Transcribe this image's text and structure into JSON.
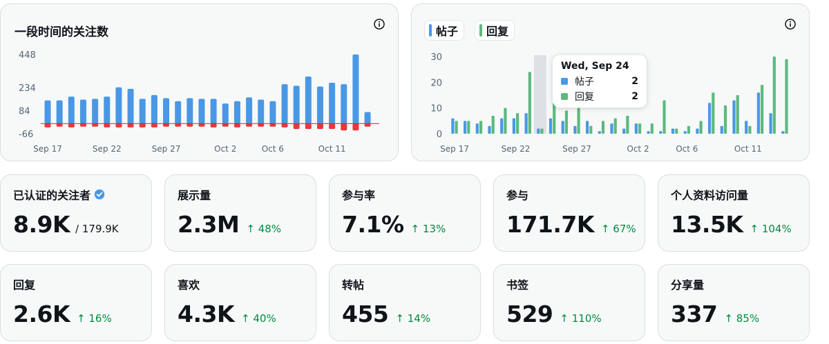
{
  "followers_chart": {
    "title": "一段时间的关注数",
    "info_icon": "info-icon",
    "y_ticks": [
      "448",
      "234",
      "84",
      "-66"
    ],
    "x_labels": [
      "Sep 17",
      "Sep 22",
      "Sep 27",
      "Oct 2",
      "Oct 6",
      "Oct 11"
    ],
    "colors": {
      "gain": "#4a98e5",
      "loss": "#e5393b"
    }
  },
  "activity_chart": {
    "legend": [
      {
        "label": "帖子",
        "color": "#4a98e5"
      },
      {
        "label": "回复",
        "color": "#5cb97e"
      }
    ],
    "info_icon": "info-icon",
    "y_ticks": [
      "30",
      "20",
      "10",
      "0"
    ],
    "x_labels": [
      "Sep 17",
      "Sep 22",
      "Sep 27",
      "Oct 2",
      "Oct 6",
      "Oct 11"
    ],
    "tooltip": {
      "date": "Wed, Sep 24",
      "rows": [
        {
          "name": "帖子",
          "value": "2"
        },
        {
          "name": "回复",
          "value": "2"
        }
      ]
    }
  },
  "chart_data": [
    {
      "type": "bar",
      "x": [
        "Sep 17",
        "Sep 18",
        "Sep 19",
        "Sep 20",
        "Sep 21",
        "Sep 22",
        "Sep 23",
        "Sep 24",
        "Sep 25",
        "Sep 26",
        "Sep 27",
        "Sep 28",
        "Sep 29",
        "Sep 30",
        "Oct 1",
        "Oct 2",
        "Oct 3",
        "Oct 4",
        "Oct 5",
        "Oct 6",
        "Oct 7",
        "Oct 8",
        "Oct 9",
        "Oct 10",
        "Oct 11",
        "Oct 12",
        "Oct 13",
        "Oct 14"
      ],
      "series": [
        {
          "values": [
            150,
            150,
            175,
            155,
            160,
            175,
            235,
            225,
            160,
            185,
            165,
            145,
            165,
            160,
            160,
            130,
            145,
            170,
            155,
            145,
            255,
            245,
            305,
            240,
            265,
            255,
            448,
            75
          ]
        },
        {
          "values": [
            -25,
            -20,
            -25,
            -20,
            -20,
            -25,
            -25,
            -25,
            -25,
            -25,
            -20,
            -20,
            -20,
            -20,
            -25,
            -20,
            -25,
            -20,
            -20,
            -20,
            -25,
            -35,
            -35,
            -35,
            -35,
            -45,
            -45,
            -20
          ]
        }
      ],
      "ylim": [
        -66,
        448
      ],
      "y_ticks": [
        448,
        234,
        84,
        -66
      ]
    },
    {
      "type": "bar",
      "x": [
        "Sep 17",
        "Sep 18",
        "Sep 19",
        "Sep 20",
        "Sep 21",
        "Sep 22",
        "Sep 23",
        "Sep 24",
        "Sep 25",
        "Sep 26",
        "Sep 27",
        "Sep 28",
        "Sep 29",
        "Sep 30",
        "Oct 1",
        "Oct 2",
        "Oct 3",
        "Oct 4",
        "Oct 5",
        "Oct 6",
        "Oct 7",
        "Oct 8",
        "Oct 9",
        "Oct 10",
        "Oct 11",
        "Oct 12",
        "Oct 13",
        "Oct 14"
      ],
      "series": [
        {
          "name": "帖子",
          "values": [
            6,
            5,
            4,
            3,
            6,
            6,
            8,
            2,
            6,
            5,
            3,
            5,
            1,
            4,
            2,
            4,
            1,
            1,
            2,
            1,
            2,
            12,
            3,
            13,
            5,
            16,
            8,
            1
          ]
        },
        {
          "name": "回复",
          "values": [
            5,
            5,
            5,
            7,
            10,
            8,
            24,
            2,
            12,
            9,
            10,
            3,
            5,
            6,
            7,
            4,
            4,
            13,
            2,
            3,
            5,
            16,
            11,
            15,
            3,
            19,
            30,
            29
          ]
        }
      ],
      "ylim": [
        0,
        30
      ],
      "y_ticks": [
        30,
        20,
        10,
        0
      ]
    }
  ],
  "stats": [
    {
      "label": "已认证的关注者",
      "value": "8.9K",
      "total": "/ 179.9K",
      "verified_icon": "verified-badge-icon"
    },
    {
      "label": "展示量",
      "value": "2.3M",
      "change": "↑ 48%"
    },
    {
      "label": "参与率",
      "value": "7.1%",
      "change": "↑ 13%"
    },
    {
      "label": "参与",
      "value": "171.7K",
      "change": "↑ 67%"
    },
    {
      "label": "个人资料访问量",
      "value": "13.5K",
      "change": "↑ 104%"
    },
    {
      "label": "回复",
      "value": "2.6K",
      "change": "↑ 16%"
    },
    {
      "label": "喜欢",
      "value": "4.3K",
      "change": "↑ 40%"
    },
    {
      "label": "转帖",
      "value": "455",
      "change": "↑ 14%"
    },
    {
      "label": "书签",
      "value": "529",
      "change": "↑ 110%"
    },
    {
      "label": "分享量",
      "value": "337",
      "change": "↑ 85%"
    }
  ]
}
